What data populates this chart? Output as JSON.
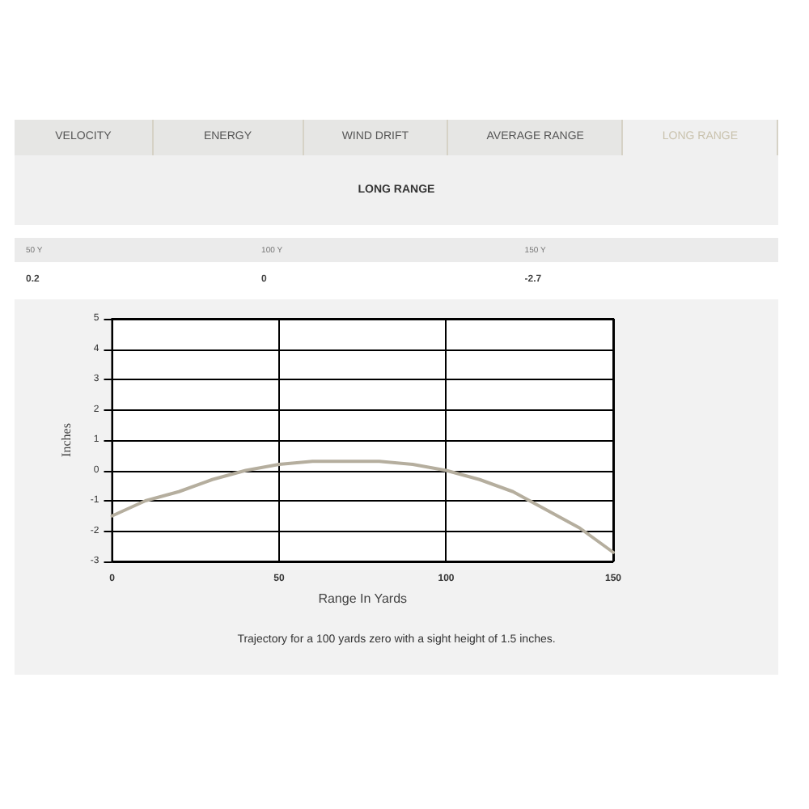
{
  "chart_data": {
    "type": "line",
    "title": "LONG RANGE",
    "xlabel": "Range In Yards",
    "ylabel": "Inches",
    "annotations": [
      "VELOCITY",
      "ENERGY",
      "WIND DRIFT",
      "AVERAGE RANGE",
      "LONG RANGE",
      "50 Y",
      "100 Y",
      "150 Y",
      "0.2",
      "0",
      "-2.7",
      "Trajectory for a 100 yards zero with a sight height of 1.5 inches."
    ],
    "x": [
      0,
      10,
      20,
      30,
      40,
      50,
      60,
      70,
      80,
      90,
      100,
      110,
      120,
      130,
      140,
      150
    ],
    "series": [
      {
        "color": "#b5ae9e",
        "values": [
          -1.5,
          -1.0,
          -0.7,
          -0.3,
          0.0,
          0.2,
          0.3,
          0.3,
          0.3,
          0.2,
          0.0,
          -0.3,
          -0.7,
          -1.3,
          -1.9,
          -2.7
        ]
      }
    ],
    "xlim": [
      0,
      150
    ],
    "xticks": [
      0,
      50,
      100,
      150
    ],
    "ylim": [
      -3,
      5
    ],
    "yticks": [
      -3,
      -2,
      -1,
      0,
      1,
      2,
      3,
      4,
      5
    ],
    "grid": true,
    "marker": "none",
    "line_style": "solid"
  }
}
